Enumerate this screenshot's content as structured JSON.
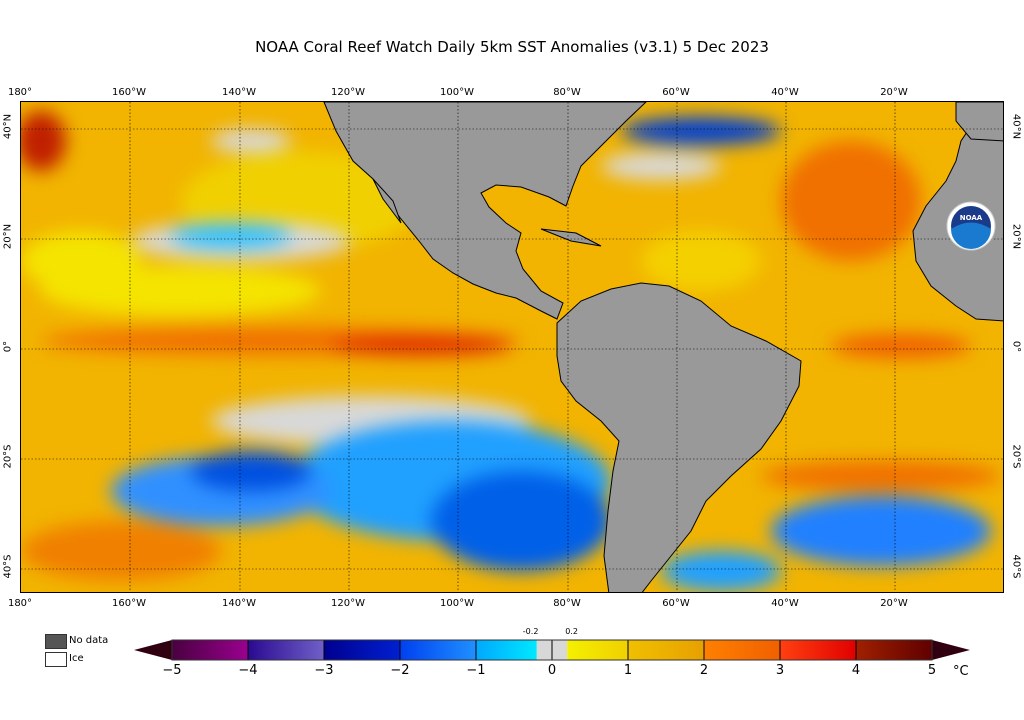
{
  "title": "NOAA Coral Reef Watch Daily 5km SST Anomalies  (v3.1)   5 Dec 2023",
  "logo_text": "NOAA",
  "lon_labels": [
    "180°",
    "160°W",
    "140°W",
    "120°W",
    "100°W",
    "80°W",
    "60°W",
    "40°W",
    "20°W"
  ],
  "lat_labels": [
    "40°N",
    "20°N",
    "0°",
    "20°S",
    "40°S"
  ],
  "colors": {
    "land": "#999999",
    "no_data": "#555555",
    "ice": "#ffffff",
    "base_anomaly": "#f2b400"
  },
  "legend": {
    "no_data": "No data",
    "ice": "Ice"
  },
  "colorbar": {
    "min": -5,
    "max": 5,
    "unit": "°C",
    "ticks": [
      "−5",
      "−4",
      "−3",
      "−2",
      "−1",
      "0",
      "1",
      "2",
      "3",
      "4",
      "5"
    ],
    "minor_labels": [
      "-0.2",
      "0.2"
    ],
    "segments": [
      {
        "from": -5,
        "to": -4,
        "c1": "#4a0040",
        "c2": "#9a0090"
      },
      {
        "from": -4,
        "to": -3,
        "c1": "#2a0a90",
        "c2": "#7060c8"
      },
      {
        "from": -3,
        "to": -2,
        "c1": "#000090",
        "c2": "#0020d0"
      },
      {
        "from": -2,
        "to": -1,
        "c1": "#0040f0",
        "c2": "#2090ff"
      },
      {
        "from": -1,
        "to": -0.2,
        "c1": "#00a8ff",
        "c2": "#00e8ff"
      },
      {
        "from": -0.2,
        "to": 0.2,
        "c1": "#d8d8d8",
        "c2": "#d8d8d8"
      },
      {
        "from": 0.2,
        "to": 1,
        "c1": "#f4f000",
        "c2": "#f0d000"
      },
      {
        "from": 1,
        "to": 2,
        "c1": "#f0c000",
        "c2": "#e8a000"
      },
      {
        "from": 2,
        "to": 3,
        "c1": "#ff8000",
        "c2": "#f06000"
      },
      {
        "from": 3,
        "to": 4,
        "c1": "#ff4010",
        "c2": "#e00000"
      },
      {
        "from": 4,
        "to": 5,
        "c1": "#a02000",
        "c2": "#600000"
      }
    ],
    "under_color": "#300010",
    "over_color": "#300010"
  }
}
